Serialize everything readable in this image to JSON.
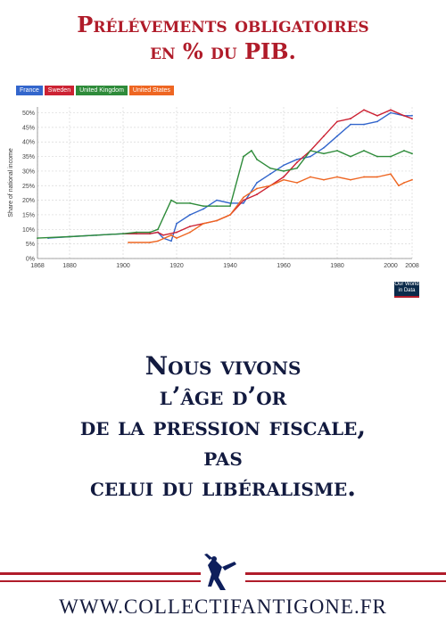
{
  "header": {
    "line1": "Prélévements obligatoires",
    "line2": "en % du PIB."
  },
  "chart_data": {
    "type": "line",
    "ylabel": "Share of national income",
    "xlabel": "",
    "xlim": [
      1868,
      2008
    ],
    "ylim": [
      0,
      52
    ],
    "xticks": [
      "1868",
      "1880",
      "1900",
      "1920",
      "1940",
      "1960",
      "1980",
      "2000",
      "2008"
    ],
    "yticks": [
      "0%",
      "5%",
      "10%",
      "15%",
      "20%",
      "25%",
      "30%",
      "35%",
      "40%",
      "45%",
      "50%"
    ],
    "grid": true,
    "legend_position": "top-left",
    "series": [
      {
        "name": "France",
        "color": "#3366cc",
        "x": [
          1872,
          1880,
          1890,
          1900,
          1905,
          1910,
          1913,
          1915,
          1918,
          1920,
          1925,
          1930,
          1935,
          1940,
          1945,
          1950,
          1955,
          1960,
          1965,
          1970,
          1975,
          1980,
          1985,
          1990,
          1995,
          2000,
          2005,
          2008
        ],
        "y": [
          7,
          7.5,
          8,
          8.5,
          8.5,
          8.5,
          9,
          7,
          6,
          12,
          15,
          17,
          20,
          19,
          19,
          26,
          29,
          32,
          34,
          35,
          38,
          42,
          46,
          46,
          47,
          50,
          49,
          49
        ]
      },
      {
        "name": "Sweden",
        "color": "#cc2233",
        "x": [
          1900,
          1905,
          1910,
          1913,
          1915,
          1920,
          1925,
          1930,
          1935,
          1940,
          1945,
          1950,
          1955,
          1960,
          1965,
          1970,
          1975,
          1980,
          1985,
          1990,
          1995,
          2000,
          2005,
          2008
        ],
        "y": [
          8.5,
          8.5,
          8.5,
          9,
          8,
          9,
          11,
          12,
          13,
          15,
          20,
          22,
          25,
          28,
          33,
          37,
          42,
          47,
          48,
          51,
          49,
          51,
          49,
          48
        ]
      },
      {
        "name": "United Kingdom",
        "color": "#2e8b3a",
        "x": [
          1868,
          1880,
          1890,
          1900,
          1905,
          1910,
          1913,
          1918,
          1920,
          1925,
          1930,
          1935,
          1940,
          1945,
          1948,
          1950,
          1955,
          1960,
          1965,
          1970,
          1975,
          1980,
          1985,
          1990,
          1995,
          2000,
          2005,
          2008
        ],
        "y": [
          7,
          7.5,
          8,
          8.5,
          9,
          9,
          10,
          20,
          19,
          19,
          18,
          18,
          18,
          35,
          37,
          34,
          31,
          30,
          31,
          37,
          36,
          37,
          35,
          37,
          35,
          35,
          37,
          36
        ]
      },
      {
        "name": "United States",
        "color": "#ee6622",
        "x": [
          1902,
          1910,
          1913,
          1918,
          1920,
          1925,
          1930,
          1935,
          1940,
          1945,
          1950,
          1955,
          1960,
          1965,
          1970,
          1975,
          1980,
          1985,
          1990,
          1995,
          2000,
          2003,
          2005,
          2008
        ],
        "y": [
          5.5,
          5.5,
          6,
          8,
          7,
          9,
          12,
          13,
          15,
          21,
          24,
          25,
          27,
          26,
          28,
          27,
          28,
          27,
          28,
          28,
          29,
          25,
          26,
          27
        ]
      }
    ]
  },
  "owid": {
    "line1": "Our World",
    "line2": "in Data"
  },
  "slogan": [
    "Nous vivons",
    "l’âge d’or",
    "de la pression fiscale,",
    "pas",
    "celui du libéralisme."
  ],
  "footer": {
    "url": "WWW.COLLECTIFANTIGONE.FR"
  }
}
